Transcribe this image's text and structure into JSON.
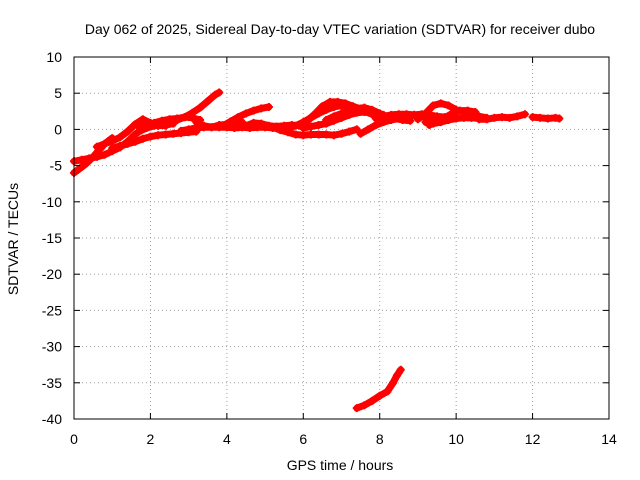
{
  "chart_data": {
    "type": "scatter",
    "title": "Day 062 of 2025, Sidereal Day-to-day VTEC variation (SDTVAR) for receiver dubo",
    "xlabel": "GPS time / hours",
    "ylabel": "SDTVAR / TECUs",
    "xlim": [
      0,
      14
    ],
    "ylim": [
      -40,
      10
    ],
    "xticks": [
      0,
      2,
      4,
      6,
      8,
      10,
      12,
      14
    ],
    "yticks": [
      10,
      5,
      0,
      -5,
      -10,
      -15,
      -20,
      -25,
      -30,
      -35,
      -40
    ],
    "grid": true,
    "marker_color": "#ff0000",
    "marker": "plus",
    "series": [
      {
        "values": [
          [
            0.0,
            -6.0
          ],
          [
            0.1,
            -5.6
          ],
          [
            0.2,
            -5.2
          ],
          [
            0.3,
            -4.8
          ],
          [
            0.4,
            -4.3
          ],
          [
            0.5,
            -3.8
          ],
          [
            0.6,
            -3.2
          ],
          [
            0.7,
            -2.6
          ],
          [
            0.8,
            -2.0
          ],
          [
            0.9,
            -1.6
          ],
          [
            1.0,
            -1.2
          ]
        ]
      },
      {
        "values": [
          [
            0.0,
            -4.4
          ],
          [
            0.2,
            -4.2
          ],
          [
            0.4,
            -4.0
          ],
          [
            0.6,
            -3.8
          ],
          [
            0.8,
            -3.5
          ],
          [
            1.0,
            -3.0
          ],
          [
            1.2,
            -2.5
          ],
          [
            1.4,
            -1.7
          ],
          [
            1.6,
            -0.7
          ],
          [
            1.8,
            0.1
          ],
          [
            2.0,
            0.4
          ],
          [
            2.2,
            0.6
          ],
          [
            2.4,
            0.5
          ]
        ]
      },
      {
        "values": [
          [
            0.6,
            -2.4
          ],
          [
            0.8,
            -2.0
          ],
          [
            1.0,
            -1.6
          ],
          [
            1.2,
            -1.1
          ],
          [
            1.4,
            -0.3
          ],
          [
            1.6,
            0.7
          ],
          [
            1.8,
            1.4
          ],
          [
            2.0,
            0.9
          ],
          [
            2.2,
            0.5
          ],
          [
            2.4,
            0.6
          ],
          [
            2.6,
            0.8
          ]
        ]
      },
      {
        "values": [
          [
            1.0,
            -2.6
          ],
          [
            1.2,
            -2.3
          ],
          [
            1.4,
            -2.0
          ],
          [
            1.6,
            -1.7
          ],
          [
            1.8,
            -1.3
          ],
          [
            2.0,
            -1.0
          ],
          [
            2.2,
            -0.8
          ],
          [
            2.4,
            -0.7
          ],
          [
            2.6,
            -0.6
          ],
          [
            2.8,
            -0.5
          ],
          [
            3.0,
            -0.4
          ],
          [
            3.2,
            -0.3
          ]
        ]
      },
      {
        "values": [
          [
            1.7,
            -0.3
          ],
          [
            1.9,
            0.2
          ],
          [
            2.1,
            0.5
          ],
          [
            2.3,
            0.8
          ],
          [
            2.5,
            1.0
          ],
          [
            2.7,
            1.3
          ],
          [
            2.9,
            1.7
          ],
          [
            3.1,
            2.3
          ],
          [
            3.3,
            3.0
          ],
          [
            3.5,
            3.9
          ],
          [
            3.7,
            4.8
          ],
          [
            3.8,
            5.1
          ]
        ]
      },
      {
        "values": [
          [
            1.7,
            0.3
          ],
          [
            1.9,
            0.5
          ],
          [
            2.1,
            0.9
          ],
          [
            2.3,
            1.2
          ],
          [
            2.5,
            1.4
          ],
          [
            2.7,
            1.5
          ],
          [
            2.9,
            1.7
          ],
          [
            3.1,
            1.6
          ],
          [
            3.3,
            1.3
          ]
        ]
      },
      {
        "values": [
          [
            2.8,
            -0.2
          ],
          [
            3.0,
            0.0
          ],
          [
            3.2,
            0.2
          ],
          [
            3.4,
            0.3
          ],
          [
            3.6,
            0.3
          ],
          [
            3.8,
            0.3
          ],
          [
            4.0,
            0.3
          ],
          [
            4.2,
            0.2
          ],
          [
            4.4,
            0.3
          ],
          [
            4.6,
            0.2
          ],
          [
            4.8,
            0.3
          ],
          [
            5.0,
            0.3
          ],
          [
            5.2,
            0.2
          ],
          [
            5.4,
            0.3
          ],
          [
            5.6,
            0.2
          ]
        ]
      },
      {
        "values": [
          [
            3.2,
            1.0
          ],
          [
            3.4,
            0.5
          ],
          [
            3.6,
            0.3
          ],
          [
            3.8,
            0.6
          ],
          [
            4.0,
            0.7
          ],
          [
            4.2,
            0.6
          ],
          [
            4.4,
            1.0
          ]
        ]
      },
      {
        "values": [
          [
            3.9,
            0.5
          ],
          [
            4.1,
            1.1
          ],
          [
            4.3,
            1.7
          ],
          [
            4.5,
            2.2
          ],
          [
            4.7,
            2.6
          ],
          [
            4.9,
            2.9
          ],
          [
            5.1,
            3.1
          ]
        ]
      },
      {
        "values": [
          [
            4.3,
            0.3
          ],
          [
            4.5,
            0.5
          ],
          [
            4.7,
            0.9
          ],
          [
            4.9,
            0.8
          ],
          [
            5.1,
            0.5
          ],
          [
            5.3,
            0.4
          ],
          [
            5.5,
            0.5
          ],
          [
            5.7,
            0.6
          ],
          [
            5.9,
            0.5
          ]
        ]
      },
      {
        "values": [
          [
            5.2,
            0.3
          ],
          [
            5.4,
            -0.1
          ],
          [
            5.6,
            -0.4
          ],
          [
            5.8,
            -0.7
          ],
          [
            6.0,
            -0.8
          ],
          [
            6.2,
            -0.7
          ],
          [
            6.4,
            -0.7
          ],
          [
            6.6,
            -0.7
          ],
          [
            6.8,
            -0.8
          ],
          [
            7.0,
            -0.6
          ],
          [
            7.2,
            -0.3
          ],
          [
            7.4,
            0.0
          ]
        ]
      },
      {
        "values": [
          [
            5.6,
            0.2
          ],
          [
            5.8,
            0.5
          ],
          [
            6.0,
            1.0
          ],
          [
            6.2,
            1.6
          ],
          [
            6.4,
            2.2
          ],
          [
            6.6,
            2.7
          ],
          [
            6.8,
            3.1
          ],
          [
            7.0,
            3.3
          ],
          [
            7.2,
            3.2
          ],
          [
            7.4,
            2.9
          ],
          [
            7.6,
            2.5
          ],
          [
            7.8,
            2.1
          ],
          [
            8.0,
            1.8
          ]
        ]
      },
      {
        "values": [
          [
            5.9,
            0.6
          ],
          [
            6.1,
            1.2
          ],
          [
            6.3,
            2.1
          ],
          [
            6.5,
            3.2
          ],
          [
            6.7,
            3.8
          ],
          [
            6.9,
            3.8
          ],
          [
            7.1,
            3.6
          ],
          [
            7.3,
            3.2
          ],
          [
            7.5,
            2.8
          ],
          [
            7.7,
            2.5
          ],
          [
            7.9,
            2.3
          ],
          [
            8.1,
            2.0
          ]
        ]
      },
      {
        "values": [
          [
            6.0,
            0.2
          ],
          [
            6.2,
            0.4
          ],
          [
            6.4,
            0.6
          ],
          [
            6.6,
            0.8
          ],
          [
            6.8,
            1.2
          ],
          [
            7.0,
            1.6
          ],
          [
            7.2,
            2.0
          ],
          [
            7.4,
            2.3
          ],
          [
            7.6,
            2.4
          ],
          [
            7.8,
            2.3
          ],
          [
            8.0,
            2.0
          ],
          [
            8.2,
            1.7
          ]
        ]
      },
      {
        "values": [
          [
            6.6,
            1.3
          ],
          [
            6.8,
            1.8
          ],
          [
            7.0,
            2.2
          ],
          [
            7.2,
            2.6
          ],
          [
            7.4,
            2.9
          ],
          [
            7.6,
            3.0
          ],
          [
            7.8,
            2.7
          ],
          [
            8.0,
            2.2
          ],
          [
            8.2,
            1.7
          ],
          [
            8.4,
            1.5
          ],
          [
            8.6,
            1.3
          ],
          [
            8.8,
            1.2
          ]
        ]
      },
      {
        "values": [
          [
            7.5,
            -0.6
          ],
          [
            7.7,
            0.0
          ],
          [
            7.9,
            0.6
          ],
          [
            8.1,
            1.0
          ],
          [
            8.3,
            1.3
          ],
          [
            8.5,
            1.5
          ],
          [
            8.7,
            1.8
          ],
          [
            8.9,
            2.0
          ],
          [
            9.1,
            2.1
          ],
          [
            9.3,
            2.0
          ],
          [
            9.5,
            1.8
          ],
          [
            9.7,
            1.7
          ]
        ]
      },
      {
        "values": [
          [
            7.9,
            1.5
          ],
          [
            8.1,
            1.8
          ],
          [
            8.3,
            2.0
          ],
          [
            8.5,
            2.1
          ],
          [
            8.7,
            2.1
          ],
          [
            8.9,
            2.0
          ],
          [
            9.1,
            1.8
          ],
          [
            9.3,
            1.6
          ],
          [
            9.5,
            1.5
          ],
          [
            9.7,
            1.6
          ],
          [
            9.9,
            1.7
          ]
        ]
      },
      {
        "values": [
          [
            9.0,
            1.4
          ],
          [
            9.2,
            2.2
          ],
          [
            9.4,
            3.3
          ],
          [
            9.6,
            3.6
          ],
          [
            9.8,
            3.3
          ],
          [
            10.0,
            2.7
          ],
          [
            10.2,
            2.4
          ],
          [
            10.4,
            2.1
          ],
          [
            10.6,
            1.8
          ],
          [
            10.8,
            1.6
          ]
        ]
      },
      {
        "values": [
          [
            9.3,
            0.6
          ],
          [
            9.5,
            1.1
          ],
          [
            9.7,
            1.6
          ],
          [
            9.9,
            2.2
          ],
          [
            10.1,
            2.6
          ],
          [
            10.3,
            2.6
          ],
          [
            10.5,
            2.4
          ]
        ]
      },
      {
        "values": [
          [
            9.2,
            1.0
          ],
          [
            9.4,
            0.8
          ],
          [
            9.6,
            1.0
          ],
          [
            9.8,
            1.3
          ],
          [
            10.0,
            1.5
          ],
          [
            10.2,
            1.6
          ],
          [
            10.4,
            1.6
          ],
          [
            10.6,
            1.5
          ]
        ]
      },
      {
        "values": [
          [
            10.6,
            1.4
          ],
          [
            10.8,
            1.4
          ],
          [
            11.0,
            1.6
          ],
          [
            11.2,
            1.7
          ],
          [
            11.4,
            1.6
          ],
          [
            11.6,
            1.8
          ],
          [
            11.8,
            2.1
          ]
        ]
      },
      {
        "values": [
          [
            12.0,
            1.7
          ],
          [
            12.2,
            1.6
          ],
          [
            12.4,
            1.5
          ],
          [
            12.6,
            1.6
          ],
          [
            12.7,
            1.5
          ]
        ]
      },
      {
        "values": [
          [
            7.4,
            -38.5
          ],
          [
            7.6,
            -38.1
          ],
          [
            7.8,
            -37.5
          ],
          [
            8.0,
            -36.8
          ],
          [
            8.2,
            -36.2
          ],
          [
            8.35,
            -35.0
          ],
          [
            8.45,
            -34.0
          ],
          [
            8.55,
            -33.2
          ]
        ]
      }
    ]
  }
}
